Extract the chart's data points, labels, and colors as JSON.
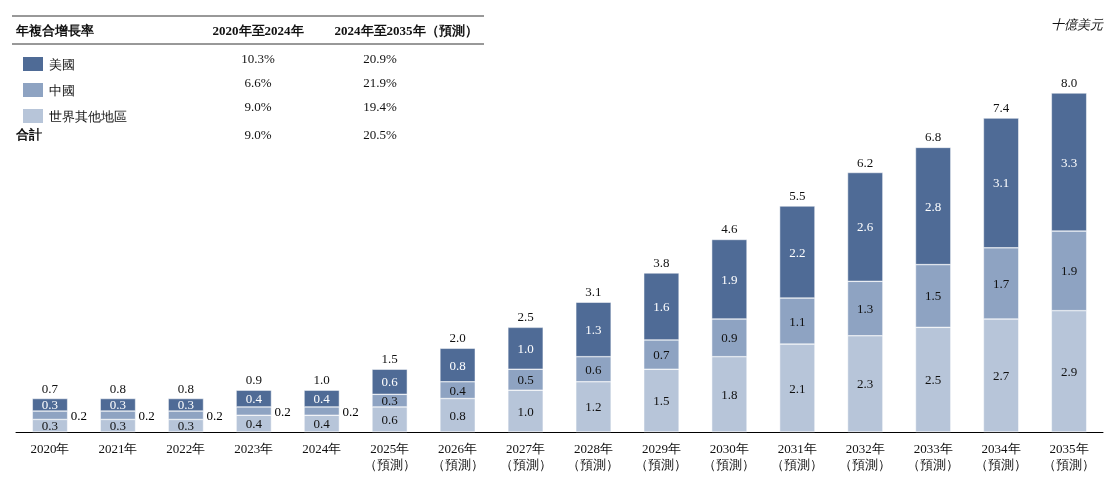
{
  "chart_data": {
    "type": "bar",
    "stacked": true,
    "tick_labels": "x",
    "legend": "top left",
    "ylabel": "十億美元",
    "categories": [
      "2020年",
      "2021年",
      "2022年",
      "2023年",
      "2024年",
      "2025年（預測）",
      "2026年（預測）",
      "2027年（預測）",
      "2028年（預測）",
      "2029年（預測）",
      "2030年（預測）",
      "2031年（預測）",
      "2032年（預測）",
      "2033年（預測）",
      "2034年（預測）",
      "2035年（預測）"
    ],
    "series": [
      {
        "name": "世界其他地區",
        "color": "#b7c5d9",
        "values": [
          0.3,
          0.3,
          0.3,
          0.4,
          0.4,
          0.6,
          0.8,
          1.0,
          1.2,
          1.5,
          1.8,
          2.1,
          2.3,
          2.5,
          2.7,
          2.9
        ],
        "value_labels": [
          "0.3",
          "0.3",
          "0.3",
          "0.4",
          "0.4",
          "0.6",
          "0.8",
          "1.0",
          "1.2",
          "1.5",
          "1.8",
          "2.1",
          "2.3",
          "2.5",
          "2.7",
          "2.9"
        ]
      },
      {
        "name": "中國",
        "color": "#8ea3c2",
        "values": [
          0.2,
          0.2,
          0.2,
          0.2,
          0.2,
          0.3,
          0.4,
          0.5,
          0.6,
          0.7,
          0.9,
          1.1,
          1.3,
          1.5,
          1.7,
          1.9
        ],
        "value_labels": [
          "0.2",
          "0.2",
          "0.2",
          "0.2",
          "0.2",
          "0.3",
          "0.4",
          "0.5",
          "0.6",
          "0.7",
          "0.9",
          "1.1",
          "1.3",
          "1.5",
          "1.7",
          "1.9"
        ]
      },
      {
        "name": "美國",
        "color": "#4f6b96",
        "values": [
          0.3,
          0.3,
          0.3,
          0.4,
          0.4,
          0.6,
          0.8,
          1.0,
          1.3,
          1.6,
          1.9,
          2.2,
          2.6,
          2.8,
          3.1,
          3.3
        ],
        "value_labels": [
          "0.3",
          "0.3",
          "0.3",
          "0.4",
          "0.4",
          "0.6",
          "0.8",
          "1.0",
          "1.3",
          "1.6",
          "1.9",
          "2.2",
          "2.6",
          "2.8",
          "3.1",
          "3.3"
        ]
      }
    ],
    "totals": [
      "0.7",
      "0.8",
      "0.8",
      "0.9",
      "1.0",
      "1.5",
      "2.0",
      "2.5",
      "3.1",
      "3.8",
      "4.6",
      "5.5",
      "6.2",
      "6.8",
      "7.4",
      "8.0"
    ],
    "annotations": [
      "年複合增長率",
      "2020年至2024年",
      "2024年至2035年（預測）",
      "10.3%",
      "20.9%",
      "6.6%",
      "21.9%",
      "9.0%",
      "19.4%",
      "合計",
      "9.0%",
      "20.5%"
    ]
  }
}
